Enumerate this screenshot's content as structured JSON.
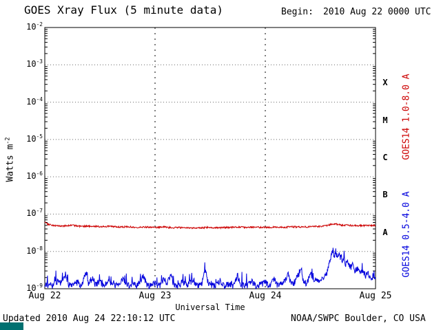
{
  "header": {
    "title": "GOES Xray Flux (5 minute data)",
    "begin_label": "Begin:",
    "begin_value": "2010 Aug 22 0000 UTC"
  },
  "axes": {
    "ylabel_base": "Watts m",
    "ylabel_exp": "-2",
    "xlabel": "Universal Time",
    "x_tick_labels": [
      "Aug 22",
      "Aug 23",
      "Aug 24",
      "Aug 25"
    ],
    "y_tick_exponents": [
      -2,
      -3,
      -4,
      -5,
      -6,
      -7,
      -8,
      -9
    ]
  },
  "footer": {
    "updated": "Updated 2010 Aug 24 22:10:12 UTC",
    "source": "NOAA/SWPC Boulder, CO USA"
  },
  "colors": {
    "long_channel": "#cc0000",
    "short_channel": "#0000dd",
    "corner_box": "#007070"
  },
  "chart_data": {
    "type": "line",
    "title": "GOES Xray Flux (5 minute data)",
    "xlabel": "Universal Time",
    "ylabel": "Watts m^-2",
    "y_scale": "log",
    "x_range": [
      0,
      72
    ],
    "x_unit": "hours since 2010 Aug 22 0000 UTC",
    "y_range": [
      1e-09,
      0.01
    ],
    "sample_hours": 0.0833333,
    "day_lines": [
      24,
      48
    ],
    "x_ticks": [
      {
        "t": 0,
        "label": "Aug 22"
      },
      {
        "t": 24,
        "label": "Aug 23"
      },
      {
        "t": 48,
        "label": "Aug 24"
      },
      {
        "t": 72,
        "label": "Aug 25"
      }
    ],
    "flare_classes": [
      {
        "label": "X",
        "log_center": -3.5
      },
      {
        "label": "M",
        "log_center": -4.5
      },
      {
        "label": "C",
        "log_center": -5.5
      },
      {
        "label": "B",
        "log_center": -6.5
      },
      {
        "label": "A",
        "log_center": -7.5
      }
    ],
    "series": [
      {
        "name": "GOES14 1.0-8.0 A",
        "color": "#cc0000",
        "seed": 7,
        "noise": 0.05,
        "spike_prob": 0,
        "spike_gain": 1,
        "keypoints": [
          [
            0,
            6.2e-08
          ],
          [
            0.5,
            5.6e-08
          ],
          [
            1,
            5.2e-08
          ],
          [
            2,
            5e-08
          ],
          [
            4,
            4.8e-08
          ],
          [
            6,
            5e-08
          ],
          [
            8,
            4.7e-08
          ],
          [
            10,
            4.8e-08
          ],
          [
            12,
            4.6e-08
          ],
          [
            14,
            4.7e-08
          ],
          [
            16,
            4.5e-08
          ],
          [
            18,
            4.6e-08
          ],
          [
            20,
            4.4e-08
          ],
          [
            22,
            4.5e-08
          ],
          [
            24,
            4.4e-08
          ],
          [
            26,
            4.5e-08
          ],
          [
            28,
            4.3e-08
          ],
          [
            30,
            4.4e-08
          ],
          [
            32,
            4.2e-08
          ],
          [
            34,
            4.3e-08
          ],
          [
            36,
            4.4e-08
          ],
          [
            38,
            4.3e-08
          ],
          [
            40,
            4.4e-08
          ],
          [
            42,
            4.5e-08
          ],
          [
            44,
            4.4e-08
          ],
          [
            46,
            4.5e-08
          ],
          [
            48,
            4.4e-08
          ],
          [
            50,
            4.5e-08
          ],
          [
            52,
            4.4e-08
          ],
          [
            54,
            4.6e-08
          ],
          [
            56,
            4.5e-08
          ],
          [
            58,
            4.6e-08
          ],
          [
            60,
            4.7e-08
          ],
          [
            61,
            4.8e-08
          ],
          [
            62,
            5.2e-08
          ],
          [
            63,
            5.5e-08
          ],
          [
            64,
            5.2e-08
          ],
          [
            65,
            5e-08
          ],
          [
            66,
            5.1e-08
          ],
          [
            67,
            4.9e-08
          ],
          [
            68,
            5e-08
          ],
          [
            69,
            4.9e-08
          ],
          [
            70,
            5e-08
          ],
          [
            71,
            4.9e-08
          ],
          [
            72,
            5e-08
          ]
        ]
      },
      {
        "name": "GOES14 0.5-4.0 A",
        "color": "#0000dd",
        "seed": 13,
        "noise": 0.2,
        "spike_prob": 0.05,
        "spike_gain": 1.9,
        "keypoints": [
          [
            0,
            1.4e-09
          ],
          [
            1,
            1.2e-09
          ],
          [
            2,
            1.3e-09
          ],
          [
            3,
            1.7e-09
          ],
          [
            3.5,
            1.2e-09
          ],
          [
            4.5,
            2.4e-09
          ],
          [
            5,
            1.3e-09
          ],
          [
            6,
            1.2e-09
          ],
          [
            7,
            1.5e-09
          ],
          [
            8,
            1.2e-09
          ],
          [
            9,
            2.7e-09
          ],
          [
            9.5,
            1.4e-09
          ],
          [
            10.5,
            2e-09
          ],
          [
            11,
            1.3e-09
          ],
          [
            12,
            1.6e-09
          ],
          [
            13,
            1.2e-09
          ],
          [
            14,
            2.1e-09
          ],
          [
            14.5,
            1.3e-09
          ],
          [
            16,
            1.2e-09
          ],
          [
            17,
            1.8e-09
          ],
          [
            18,
            1.2e-09
          ],
          [
            19,
            1.4e-09
          ],
          [
            20,
            1.2e-09
          ],
          [
            21.5,
            2.2e-09
          ],
          [
            22,
            1.3e-09
          ],
          [
            23,
            1.2e-09
          ],
          [
            24,
            1.4e-09
          ],
          [
            25,
            1.2e-09
          ],
          [
            26,
            1.9e-09
          ],
          [
            26.5,
            1.3e-09
          ],
          [
            27.5,
            2.5e-09
          ],
          [
            28,
            1.4e-09
          ],
          [
            29,
            1.2e-09
          ],
          [
            30,
            1.5e-09
          ],
          [
            31,
            1.2e-09
          ],
          [
            32,
            1.7e-09
          ],
          [
            33,
            1.3e-09
          ],
          [
            34,
            1.2e-09
          ],
          [
            35,
            3.5e-09
          ],
          [
            35.4,
            1.6e-09
          ],
          [
            36,
            1.3e-09
          ],
          [
            37,
            1.2e-09
          ],
          [
            38,
            1.6e-09
          ],
          [
            39,
            1.2e-09
          ],
          [
            40,
            1.4e-09
          ],
          [
            41,
            1.2e-09
          ],
          [
            42,
            2.3e-09
          ],
          [
            42.5,
            1.3e-09
          ],
          [
            44,
            1.2e-09
          ],
          [
            45,
            1.6e-09
          ],
          [
            46,
            1.2e-09
          ],
          [
            47,
            1.3e-09
          ],
          [
            48,
            1.5e-09
          ],
          [
            49,
            1.2e-09
          ],
          [
            50,
            2e-09
          ],
          [
            50.5,
            1.3e-09
          ],
          [
            52,
            1.4e-09
          ],
          [
            53,
            2.7e-09
          ],
          [
            53.5,
            1.5e-09
          ],
          [
            54,
            1.3e-09
          ],
          [
            55,
            2.1e-09
          ],
          [
            55.8,
            3.7e-09
          ],
          [
            56.2,
            1.8e-09
          ],
          [
            57,
            1.4e-09
          ],
          [
            58,
            2.5e-09
          ],
          [
            58.5,
            1.5e-09
          ],
          [
            59,
            1.7e-09
          ],
          [
            60,
            1.5e-09
          ],
          [
            60.8,
            2.1e-09
          ],
          [
            61.5,
            2.8e-09
          ],
          [
            62,
            5e-09
          ],
          [
            62.3,
            8e-09
          ],
          [
            62.6,
            1.03e-08
          ],
          [
            63,
            8e-09
          ],
          [
            63.4,
            9.3e-09
          ],
          [
            63.8,
            6.8e-09
          ],
          [
            64.2,
            8e-09
          ],
          [
            64.6,
            5.8e-09
          ],
          [
            65,
            6.6e-09
          ],
          [
            65.5,
            4.6e-09
          ],
          [
            66,
            5.4e-09
          ],
          [
            66.5,
            3.7e-09
          ],
          [
            67,
            4.4e-09
          ],
          [
            67.5,
            3e-09
          ],
          [
            68,
            3.6e-09
          ],
          [
            68.6,
            2.6e-09
          ],
          [
            69.2,
            3e-09
          ],
          [
            69.8,
            2.3e-09
          ],
          [
            70.4,
            2.6e-09
          ],
          [
            71,
            2e-09
          ],
          [
            71.5,
            2.2e-09
          ],
          [
            72,
            1.9e-09
          ]
        ]
      }
    ]
  }
}
